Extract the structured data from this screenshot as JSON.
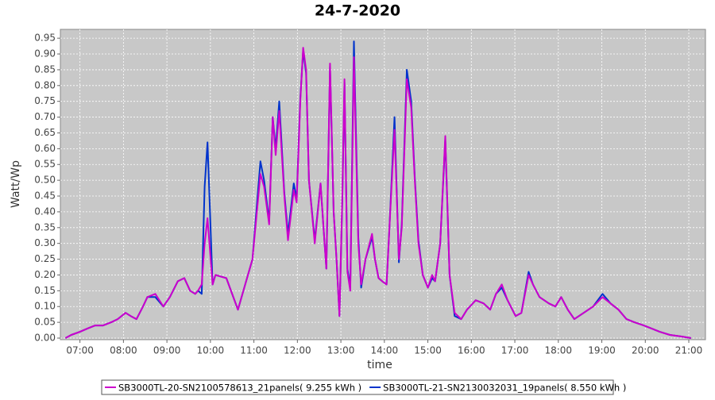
{
  "chart_data": {
    "type": "line",
    "title": "24-7-2020",
    "x_label": "time",
    "y_label": "Watt/Wp",
    "x": [
      "06:40",
      "06:48",
      "07:00",
      "07:10",
      "07:21",
      "07:32",
      "07:43",
      "07:52",
      "08:03",
      "08:10",
      "08:18",
      "08:27",
      "08:33",
      "08:44",
      "08:55",
      "09:04",
      "09:15",
      "09:24",
      "09:32",
      "09:39",
      "09:43",
      "09:48",
      "09:52",
      "09:56",
      "10:03",
      "10:07",
      "10:22",
      "10:38",
      "10:58",
      "11:09",
      "11:14",
      "11:21",
      "11:26",
      "11:30",
      "11:35",
      "11:42",
      "11:47",
      "11:55",
      "11:59",
      "12:04",
      "12:08",
      "12:12",
      "12:16",
      "12:24",
      "12:32",
      "12:36",
      "12:40",
      "12:45",
      "12:50",
      "12:54",
      "12:58",
      "13:02",
      "13:05",
      "13:09",
      "13:13",
      "13:18",
      "13:24",
      "13:28",
      "13:34",
      "13:43",
      "13:47",
      "13:52",
      "13:57",
      "14:03",
      "14:07",
      "14:14",
      "14:20",
      "14:24",
      "14:31",
      "14:37",
      "14:42",
      "14:47",
      "14:53",
      "15:00",
      "15:06",
      "15:10",
      "15:17",
      "15:24",
      "15:30",
      "15:37",
      "15:46",
      "15:54",
      "16:06",
      "16:17",
      "16:26",
      "16:34",
      "16:42",
      "16:50",
      "17:01",
      "17:09",
      "17:19",
      "17:25",
      "17:34",
      "17:47",
      "17:56",
      "18:04",
      "18:13",
      "18:22",
      "18:35",
      "18:48",
      "19:01",
      "19:12",
      "19:23",
      "19:34",
      "19:45",
      "19:58",
      "20:09",
      "20:20",
      "20:34",
      "20:50",
      "21:03"
    ],
    "series": [
      {
        "name": "SB3000TL-20-SN2100578613_21panels( 9.255 kWh )",
        "color": "#cc00cc",
        "values": [
          0.0,
          0.01,
          0.02,
          0.03,
          0.04,
          0.04,
          0.05,
          0.06,
          0.08,
          0.07,
          0.06,
          0.1,
          0.13,
          0.14,
          0.1,
          0.13,
          0.18,
          0.19,
          0.15,
          0.14,
          0.15,
          0.17,
          0.3,
          0.38,
          0.17,
          0.2,
          0.19,
          0.09,
          0.25,
          0.52,
          0.48,
          0.36,
          0.7,
          0.58,
          0.72,
          0.45,
          0.31,
          0.47,
          0.43,
          0.75,
          0.92,
          0.85,
          0.5,
          0.3,
          0.49,
          0.35,
          0.22,
          0.87,
          0.4,
          0.25,
          0.07,
          0.45,
          0.82,
          0.21,
          0.15,
          0.89,
          0.3,
          0.17,
          0.25,
          0.33,
          0.25,
          0.19,
          0.18,
          0.17,
          0.35,
          0.66,
          0.25,
          0.35,
          0.82,
          0.73,
          0.5,
          0.3,
          0.2,
          0.16,
          0.2,
          0.18,
          0.3,
          0.64,
          0.2,
          0.08,
          0.06,
          0.09,
          0.12,
          0.11,
          0.09,
          0.14,
          0.17,
          0.12,
          0.07,
          0.08,
          0.2,
          0.17,
          0.13,
          0.11,
          0.1,
          0.13,
          0.09,
          0.06,
          0.08,
          0.1,
          0.13,
          0.11,
          0.09,
          0.06,
          0.05,
          0.04,
          0.03,
          0.02,
          0.01,
          0.005,
          0.0
        ]
      },
      {
        "name": "SB3000TL-21-SN2130032031_19panels( 8.550 kWh )",
        "color": "#0033cc",
        "values": [
          0.0,
          0.01,
          0.02,
          0.03,
          0.04,
          0.04,
          0.05,
          0.06,
          0.08,
          0.07,
          0.06,
          0.1,
          0.13,
          0.13,
          0.1,
          0.13,
          0.18,
          0.19,
          0.15,
          0.14,
          0.15,
          0.14,
          0.48,
          0.62,
          0.17,
          0.2,
          0.19,
          0.09,
          0.25,
          0.56,
          0.5,
          0.37,
          0.7,
          0.6,
          0.75,
          0.46,
          0.33,
          0.49,
          0.44,
          0.76,
          0.91,
          0.84,
          0.5,
          0.31,
          0.49,
          0.35,
          0.22,
          0.86,
          0.4,
          0.25,
          0.07,
          0.44,
          0.81,
          0.22,
          0.16,
          0.94,
          0.32,
          0.16,
          0.25,
          0.32,
          0.25,
          0.19,
          0.18,
          0.17,
          0.35,
          0.7,
          0.24,
          0.36,
          0.85,
          0.75,
          0.51,
          0.31,
          0.2,
          0.16,
          0.19,
          0.18,
          0.3,
          0.63,
          0.2,
          0.07,
          0.06,
          0.09,
          0.12,
          0.11,
          0.09,
          0.14,
          0.16,
          0.12,
          0.07,
          0.08,
          0.21,
          0.17,
          0.13,
          0.11,
          0.1,
          0.13,
          0.09,
          0.06,
          0.08,
          0.1,
          0.14,
          0.11,
          0.09,
          0.06,
          0.05,
          0.04,
          0.03,
          0.02,
          0.01,
          0.005,
          0.0
        ]
      }
    ],
    "xlim": [
      "06:33",
      "21:23"
    ],
    "xticks": [
      "07:00",
      "08:00",
      "09:00",
      "10:00",
      "11:00",
      "12:00",
      "13:00",
      "14:00",
      "15:00",
      "16:00",
      "17:00",
      "18:00",
      "19:00",
      "20:00",
      "21:00"
    ],
    "ylim": [
      -0.005,
      0.978
    ],
    "yticks": [
      {
        "value": 0,
        "label": "0.00"
      },
      {
        "value": 0.05,
        "label": "0.05"
      },
      {
        "value": 0.1,
        "label": "0.10"
      },
      {
        "value": 0.15,
        "label": "0.15"
      },
      {
        "value": 0.2,
        "label": "0.20"
      },
      {
        "value": 0.25,
        "label": "0.25"
      },
      {
        "value": 0.3,
        "label": "0.30"
      },
      {
        "value": 0.35,
        "label": "0.35"
      },
      {
        "value": 0.4,
        "label": "0.40"
      },
      {
        "value": 0.45,
        "label": "0.45"
      },
      {
        "value": 0.5,
        "label": "0.50"
      },
      {
        "value": 0.55,
        "label": "0.55"
      },
      {
        "value": 0.6,
        "label": "0.60"
      },
      {
        "value": 0.65,
        "label": "0.65"
      },
      {
        "value": 0.7,
        "label": "0.70"
      },
      {
        "value": 0.75,
        "label": "0.75"
      },
      {
        "value": 0.8,
        "label": "0.80"
      },
      {
        "value": 0.85,
        "label": "0.85"
      },
      {
        "value": 0.9,
        "label": "0.90"
      },
      {
        "value": 0.95,
        "label": "0.95"
      }
    ],
    "grid": true
  }
}
